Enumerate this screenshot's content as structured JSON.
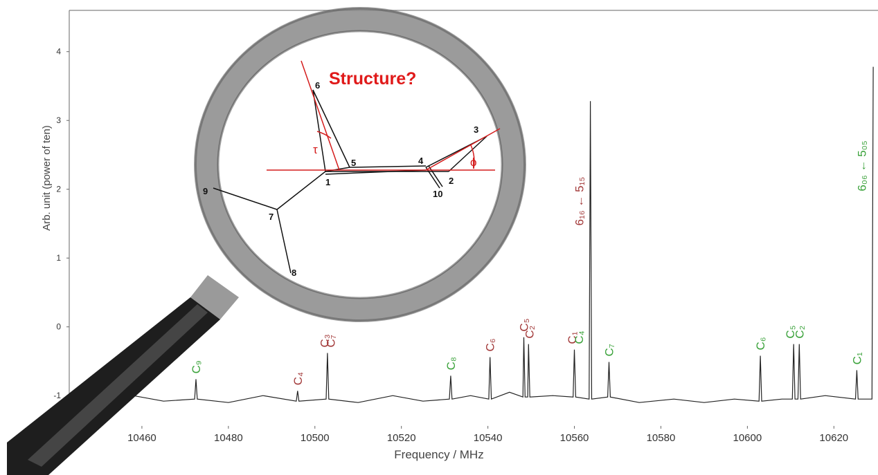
{
  "chart_data": {
    "type": "line",
    "xlabel": "Frequency / MHz",
    "ylabel": "Arb. unit (power of ten)",
    "xlim": [
      10443.2,
      10630.2
    ],
    "ylim": [
      -1.48,
      4.6
    ],
    "xticks": [
      10460,
      10480,
      10500,
      10520,
      10540,
      10560,
      10580,
      10600,
      10620
    ],
    "yticks": [
      -1,
      0,
      1,
      2,
      3,
      4
    ],
    "color": "#222222",
    "x": [
      10443,
      10450,
      10458,
      10465,
      10472.2,
      10472.5,
      10472.8,
      10480,
      10488,
      10495.7,
      10496,
      10496.3,
      10502.6,
      10502.9,
      10503.2,
      10510,
      10518,
      10525,
      10531.1,
      10531.4,
      10531.7,
      10536,
      10540.2,
      10540.5,
      10540.8,
      10545,
      10548.1,
      10548.3,
      10548.6,
      10549.2,
      10549.4,
      10549.7,
      10555,
      10559.7,
      10560,
      10560.3,
      10563.4,
      10563.7,
      10564,
      10567.7,
      10568,
      10568.3,
      10575,
      10583,
      10590,
      10597,
      10602.7,
      10603,
      10603.3,
      10608,
      10610.4,
      10610.7,
      10611,
      10611.7,
      10612,
      10612.3,
      10618,
      10625,
      10625.3,
      10625.6,
      10628.8,
      10629.1
    ],
    "values": [
      -1.05,
      -1.1,
      -1.0,
      -1.08,
      -1.05,
      -0.76,
      -1.05,
      -1.1,
      -1.0,
      -1.08,
      -0.93,
      -1.08,
      -1.05,
      -0.38,
      -1.05,
      -1.1,
      -1.0,
      -1.08,
      -1.05,
      -0.71,
      -1.05,
      -1.0,
      -1.05,
      -0.44,
      -1.05,
      -0.95,
      -1.02,
      -0.15,
      -1.02,
      -1.02,
      -0.25,
      -1.02,
      -1.0,
      -1.02,
      -0.33,
      -1.02,
      -1.05,
      3.28,
      -1.05,
      -1.02,
      -0.51,
      -1.02,
      -1.1,
      -1.05,
      -1.1,
      -1.05,
      -1.08,
      -0.42,
      -1.08,
      -1.05,
      -1.05,
      -0.25,
      -1.05,
      -1.05,
      -0.25,
      -1.05,
      -1.0,
      -1.05,
      -0.63,
      -1.05,
      -1.05,
      3.78
    ],
    "annotations": [
      {
        "text": "C₉",
        "x": 10472.5,
        "color": "#3aa23a"
      },
      {
        "text": "C₄",
        "x": 10496,
        "color": "#a33a3a"
      },
      {
        "text": "C₃",
        "x": 10502.2,
        "color": "#a33a3a"
      },
      {
        "text": "C₇",
        "x": 10503.6,
        "color": "#a33a3a"
      },
      {
        "text": "C₈",
        "x": 10531.4,
        "color": "#3aa23a"
      },
      {
        "text": "C₆",
        "x": 10540.5,
        "color": "#a33a3a"
      },
      {
        "text": "C₅",
        "x": 10548.3,
        "color": "#a33a3a"
      },
      {
        "text": "C₂",
        "x": 10549.6,
        "color": "#a33a3a"
      },
      {
        "text": "C₁",
        "x": 10559.4,
        "color": "#a33a3a"
      },
      {
        "text": "C₄",
        "x": 10561.0,
        "color": "#3aa23a"
      },
      {
        "text": "C₇",
        "x": 10568,
        "color": "#3aa23a"
      },
      {
        "text": "C₆",
        "x": 10603,
        "color": "#3aa23a"
      },
      {
        "text": "C₅",
        "x": 10609.9,
        "color": "#3aa23a"
      },
      {
        "text": "C₂",
        "x": 10612,
        "color": "#3aa23a"
      },
      {
        "text": "C₁",
        "x": 10625.3,
        "color": "#3aa23a"
      }
    ],
    "transitions": [
      {
        "text": "6₁₆ ← 5₁₅",
        "x": 10562.1,
        "color": "#a33a3a"
      },
      {
        "text": "6₀₆ ← 5₀₅",
        "x": 10627.4,
        "color": "#3aa23a"
      }
    ]
  },
  "diagram": {
    "title": "Structure?",
    "atoms": [
      "1",
      "2",
      "3",
      "4",
      "5",
      "6",
      "7",
      "8",
      "9",
      "10"
    ],
    "angles": [
      "τ",
      "ϕ"
    ]
  }
}
